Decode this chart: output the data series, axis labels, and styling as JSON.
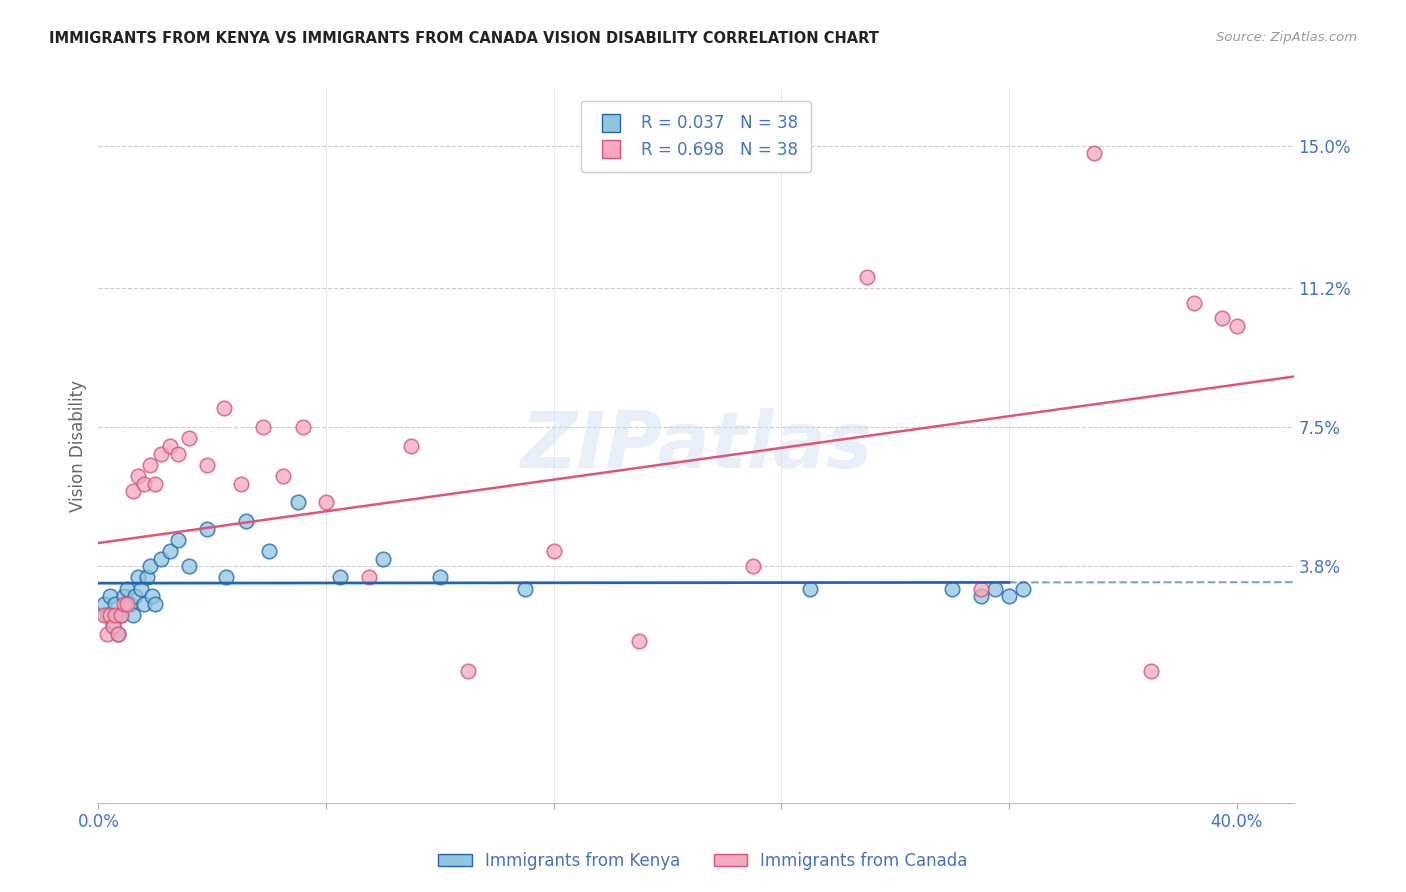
{
  "title": "IMMIGRANTS FROM KENYA VS IMMIGRANTS FROM CANADA VISION DISABILITY CORRELATION CHART",
  "source": "Source: ZipAtlas.com",
  "ylabel": "Vision Disability",
  "ytick_vals": [
    0.038,
    0.075,
    0.112,
    0.15
  ],
  "ytick_labels": [
    "3.8%",
    "7.5%",
    "11.2%",
    "15.0%"
  ],
  "xtick_vals": [
    0.0,
    0.08,
    0.16,
    0.24,
    0.32,
    0.4
  ],
  "xtick_labels": [
    "0.0%",
    "",
    "",
    "",
    "",
    "40.0%"
  ],
  "xlim": [
    0.0,
    0.42
  ],
  "ylim": [
    -0.025,
    0.165
  ],
  "legend_line1": "R = 0.037   N = 38",
  "legend_line2": "R = 0.698   N = 38",
  "color_kenya_fill": "#92c5de",
  "color_kenya_edge": "#2166ac",
  "color_kenya_line": "#2166ac",
  "color_canada_fill": "#f4a9be",
  "color_canada_edge": "#d6537a",
  "color_canada_line": "#e05575",
  "color_axis": "#4472c4",
  "color_grid": "#cccccc",
  "watermark": "ZIPatlas",
  "kenya_x": [
    0.002,
    0.003,
    0.004,
    0.005,
    0.006,
    0.007,
    0.008,
    0.009,
    0.01,
    0.011,
    0.012,
    0.013,
    0.014,
    0.015,
    0.016,
    0.017,
    0.018,
    0.019,
    0.02,
    0.022,
    0.025,
    0.028,
    0.032,
    0.038,
    0.045,
    0.052,
    0.06,
    0.07,
    0.085,
    0.1,
    0.12,
    0.15,
    0.25,
    0.3,
    0.31,
    0.315,
    0.32,
    0.325
  ],
  "kenya_y": [
    0.028,
    0.025,
    0.03,
    0.022,
    0.028,
    0.02,
    0.025,
    0.03,
    0.032,
    0.028,
    0.025,
    0.03,
    0.035,
    0.032,
    0.028,
    0.035,
    0.038,
    0.03,
    0.028,
    0.04,
    0.042,
    0.045,
    0.038,
    0.048,
    0.035,
    0.05,
    0.042,
    0.055,
    0.035,
    0.04,
    0.035,
    0.032,
    0.032,
    0.032,
    0.03,
    0.032,
    0.03,
    0.032
  ],
  "canada_x": [
    0.002,
    0.003,
    0.004,
    0.005,
    0.006,
    0.007,
    0.008,
    0.009,
    0.01,
    0.012,
    0.014,
    0.016,
    0.018,
    0.02,
    0.022,
    0.025,
    0.028,
    0.032,
    0.038,
    0.044,
    0.05,
    0.058,
    0.065,
    0.072,
    0.08,
    0.095,
    0.11,
    0.13,
    0.16,
    0.19,
    0.23,
    0.27,
    0.31,
    0.35,
    0.37,
    0.385,
    0.395,
    0.4
  ],
  "canada_y": [
    0.025,
    0.02,
    0.025,
    0.022,
    0.025,
    0.02,
    0.025,
    0.028,
    0.028,
    0.058,
    0.062,
    0.06,
    0.065,
    0.06,
    0.068,
    0.07,
    0.068,
    0.072,
    0.065,
    0.08,
    0.06,
    0.075,
    0.062,
    0.075,
    0.055,
    0.035,
    0.07,
    0.01,
    0.042,
    0.018,
    0.038,
    0.115,
    0.032,
    0.148,
    0.01,
    0.108,
    0.104,
    0.102
  ]
}
